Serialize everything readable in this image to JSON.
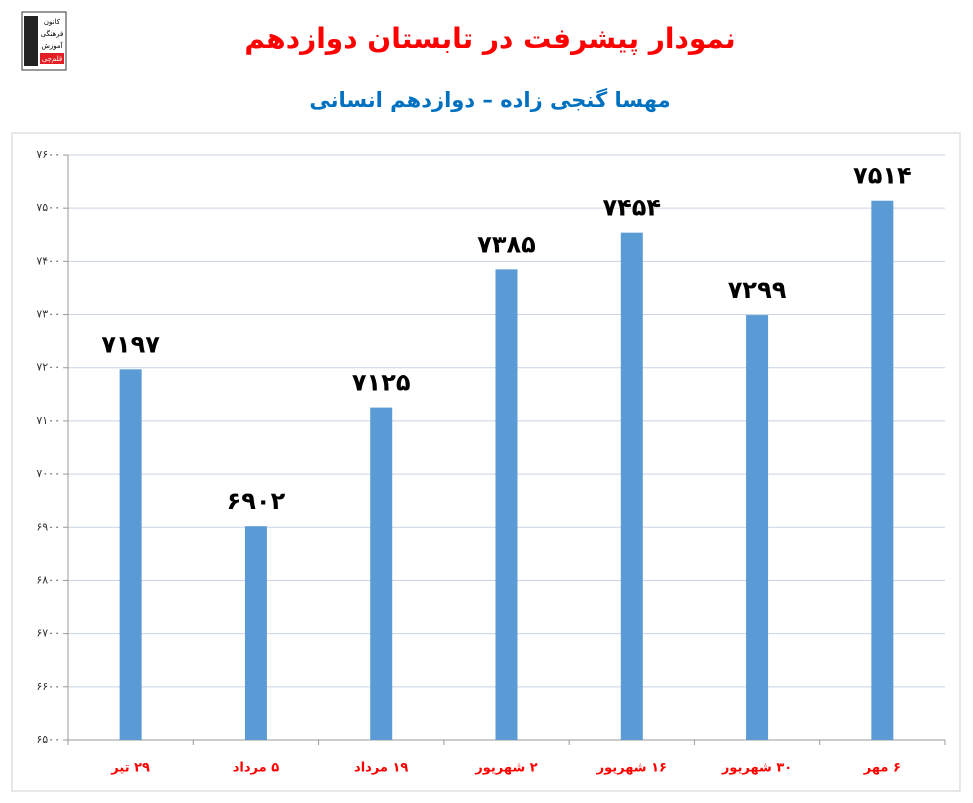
{
  "logo": {
    "lines": [
      "کانون",
      "فرهنگی",
      "آموزش",
      "قلم‌چی"
    ]
  },
  "chart_data": {
    "type": "bar",
    "title": "نمودار پیشرفت در تابستان دوازدهم",
    "subtitle": "مهسا گنجی زاده – دوازدهم انسانی",
    "categories": [
      "۲۹ تیر",
      "۵ مرداد",
      "۱۹ مرداد",
      "۲ شهریور",
      "۱۶ شهریور",
      "۳۰ شهریور",
      "۶ مهر"
    ],
    "values": [
      7197,
      6902,
      7125,
      7385,
      7454,
      7299,
      7514
    ],
    "value_labels": [
      "۷۱۹۷",
      "۶۹۰۲",
      "۷۱۲۵",
      "۷۳۸۵",
      "۷۴۵۴",
      "۷۲۹۹",
      "۷۵۱۴"
    ],
    "color": "#5b9bd5",
    "ylim": [
      6500,
      7600
    ],
    "yticks": [
      {
        "value": 6500,
        "label": "۶۵۰۰"
      },
      {
        "value": 6600,
        "label": "۶۶۰۰"
      },
      {
        "value": 6700,
        "label": "۶۷۰۰"
      },
      {
        "value": 6800,
        "label": "۶۸۰۰"
      },
      {
        "value": 6900,
        "label": "۶۹۰۰"
      },
      {
        "value": 7000,
        "label": "۷۰۰۰"
      },
      {
        "value": 7100,
        "label": "۷۱۰۰"
      },
      {
        "value": 7200,
        "label": "۷۲۰۰"
      },
      {
        "value": 7300,
        "label": "۷۳۰۰"
      },
      {
        "value": 7400,
        "label": "۷۴۰۰"
      },
      {
        "value": 7500,
        "label": "۷۵۰۰"
      },
      {
        "value": 7600,
        "label": "۷۶۰۰"
      }
    ],
    "grid": true
  }
}
